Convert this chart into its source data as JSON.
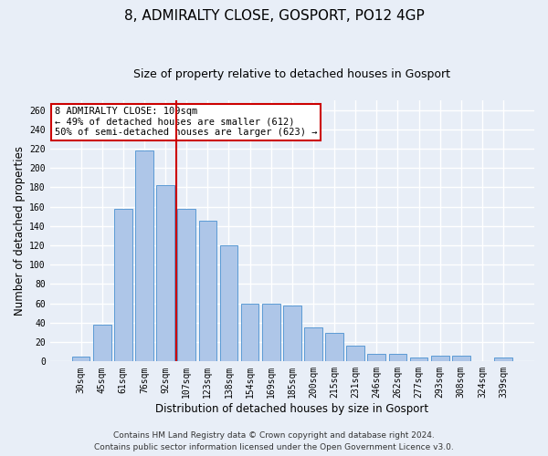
{
  "title": "8, ADMIRALTY CLOSE, GOSPORT, PO12 4GP",
  "subtitle": "Size of property relative to detached houses in Gosport",
  "xlabel": "Distribution of detached houses by size in Gosport",
  "ylabel": "Number of detached properties",
  "categories": [
    "30sqm",
    "45sqm",
    "61sqm",
    "76sqm",
    "92sqm",
    "107sqm",
    "123sqm",
    "138sqm",
    "154sqm",
    "169sqm",
    "185sqm",
    "200sqm",
    "215sqm",
    "231sqm",
    "246sqm",
    "262sqm",
    "277sqm",
    "293sqm",
    "308sqm",
    "324sqm",
    "339sqm"
  ],
  "values": [
    5,
    38,
    158,
    218,
    182,
    158,
    146,
    120,
    60,
    60,
    58,
    35,
    30,
    16,
    8,
    8,
    4,
    6,
    6,
    0,
    4
  ],
  "bar_color": "#aec6e8",
  "bar_edge_color": "#5b9bd5",
  "vline_index": 5,
  "vline_color": "#cc0000",
  "annotation_text": "8 ADMIRALTY CLOSE: 109sqm\n← 49% of detached houses are smaller (612)\n50% of semi-detached houses are larger (623) →",
  "annotation_box_color": "#ffffff",
  "annotation_box_edge_color": "#cc0000",
  "footer1": "Contains HM Land Registry data © Crown copyright and database right 2024.",
  "footer2": "Contains public sector information licensed under the Open Government Licence v3.0.",
  "ylim": [
    0,
    270
  ],
  "yticks": [
    0,
    20,
    40,
    60,
    80,
    100,
    120,
    140,
    160,
    180,
    200,
    220,
    240,
    260
  ],
  "background_color": "#e8eef7",
  "grid_color": "#ffffff",
  "title_fontsize": 11,
  "subtitle_fontsize": 9,
  "axis_label_fontsize": 8.5,
  "tick_fontsize": 7,
  "footer_fontsize": 6.5,
  "annotation_fontsize": 7.5
}
